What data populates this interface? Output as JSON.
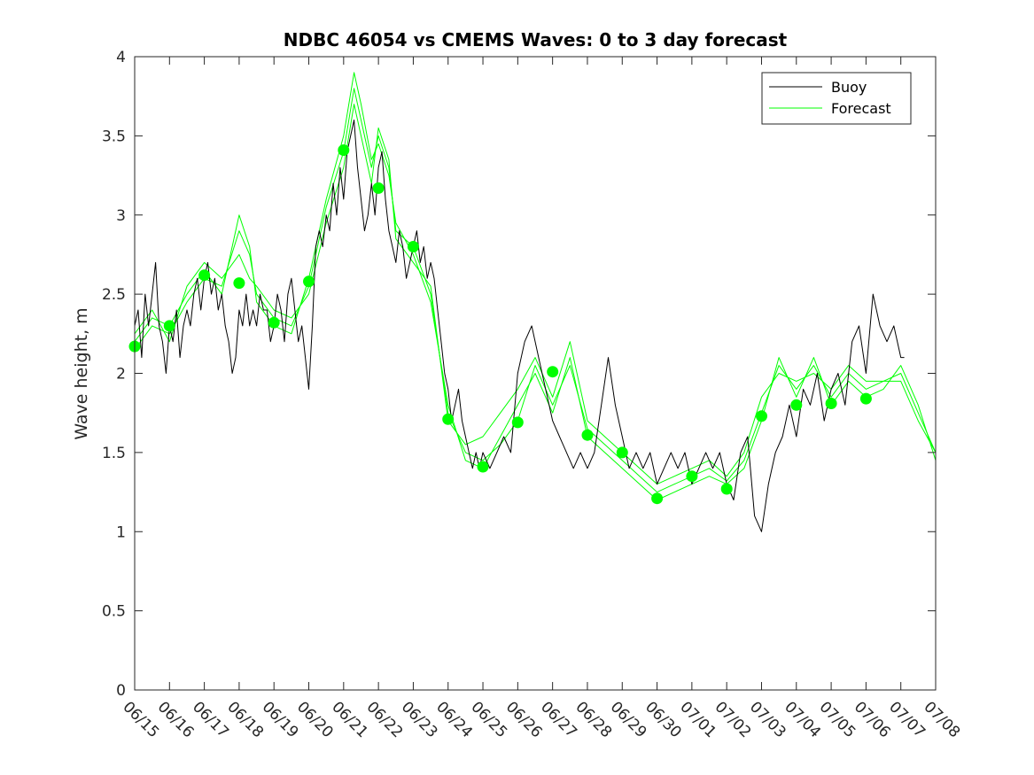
{
  "chart_data": {
    "type": "line",
    "title": "NDBC 46054 vs CMEMS Waves: 0 to 3 day forecast",
    "xlabel": "",
    "ylabel": "Wave height, m",
    "x_ticks": [
      "06/15",
      "06/16",
      "06/17",
      "06/18",
      "06/19",
      "06/20",
      "06/21",
      "06/22",
      "06/23",
      "06/24",
      "06/25",
      "06/26",
      "06/27",
      "06/28",
      "06/29",
      "06/30",
      "07/01",
      "07/02",
      "07/03",
      "07/04",
      "07/05",
      "07/06",
      "07/07",
      "07/08"
    ],
    "y_ticks": [
      "0",
      "0.5",
      "1",
      "1.5",
      "2",
      "2.5",
      "3",
      "3.5",
      "4"
    ],
    "xlim": [
      0,
      23
    ],
    "ylim": [
      0,
      4
    ],
    "grid": false,
    "legend_position": "top-right",
    "x_units": "days since 06/15",
    "series": [
      {
        "name": "Buoy",
        "color": "#000000",
        "x": [
          0,
          0.1,
          0.2,
          0.3,
          0.4,
          0.5,
          0.6,
          0.7,
          0.8,
          0.9,
          1.0,
          1.1,
          1.2,
          1.3,
          1.4,
          1.5,
          1.6,
          1.7,
          1.8,
          1.9,
          2.0,
          2.1,
          2.2,
          2.3,
          2.4,
          2.5,
          2.6,
          2.7,
          2.8,
          2.9,
          3.0,
          3.1,
          3.2,
          3.3,
          3.4,
          3.5,
          3.6,
          3.7,
          3.8,
          3.9,
          4.0,
          4.1,
          4.2,
          4.3,
          4.4,
          4.5,
          4.6,
          4.7,
          4.8,
          4.9,
          5.0,
          5.1,
          5.2,
          5.3,
          5.4,
          5.5,
          5.6,
          5.7,
          5.8,
          5.9,
          6.0,
          6.1,
          6.2,
          6.3,
          6.4,
          6.5,
          6.6,
          6.7,
          6.8,
          6.9,
          7.0,
          7.1,
          7.2,
          7.3,
          7.4,
          7.5,
          7.6,
          7.7,
          7.8,
          7.9,
          8.0,
          8.1,
          8.2,
          8.3,
          8.4,
          8.5,
          8.6,
          8.7,
          8.8,
          8.9,
          9.0,
          9.1,
          9.2,
          9.3,
          9.4,
          9.5,
          9.6,
          9.7,
          9.8,
          9.9,
          10.0,
          10.2,
          10.4,
          10.6,
          10.8,
          11.0,
          11.2,
          11.4,
          11.6,
          11.8,
          12.0,
          12.2,
          12.4,
          12.6,
          12.8,
          13.0,
          13.2,
          13.4,
          13.6,
          13.8,
          14.0,
          14.2,
          14.4,
          14.6,
          14.8,
          15.0,
          15.2,
          15.4,
          15.6,
          15.8,
          16.0,
          16.2,
          16.4,
          16.6,
          16.8,
          17.0,
          17.2,
          17.4,
          17.6,
          17.8,
          18.0,
          18.2,
          18.4,
          18.6,
          18.8,
          19.0,
          19.2,
          19.4,
          19.6,
          19.8,
          20.0,
          20.2,
          20.4,
          20.6,
          20.8,
          21.0,
          21.2,
          21.4,
          21.6,
          21.8,
          22.0,
          22.1
        ],
        "values": [
          2.3,
          2.4,
          2.1,
          2.5,
          2.3,
          2.5,
          2.7,
          2.3,
          2.2,
          2.0,
          2.3,
          2.2,
          2.4,
          2.1,
          2.3,
          2.4,
          2.3,
          2.5,
          2.6,
          2.4,
          2.6,
          2.7,
          2.5,
          2.6,
          2.4,
          2.5,
          2.3,
          2.2,
          2.0,
          2.1,
          2.4,
          2.3,
          2.5,
          2.3,
          2.4,
          2.3,
          2.5,
          2.4,
          2.4,
          2.2,
          2.3,
          2.5,
          2.4,
          2.2,
          2.5,
          2.6,
          2.4,
          2.2,
          2.3,
          2.1,
          1.9,
          2.3,
          2.8,
          2.9,
          2.8,
          3.0,
          2.9,
          3.2,
          3.0,
          3.3,
          3.1,
          3.4,
          3.5,
          3.6,
          3.3,
          3.1,
          2.9,
          3.0,
          3.2,
          3.0,
          3.3,
          3.4,
          3.1,
          2.9,
          2.8,
          2.7,
          2.9,
          2.8,
          2.6,
          2.7,
          2.8,
          2.9,
          2.7,
          2.8,
          2.6,
          2.7,
          2.6,
          2.4,
          2.2,
          2.0,
          1.9,
          1.7,
          1.8,
          1.9,
          1.7,
          1.6,
          1.5,
          1.4,
          1.5,
          1.4,
          1.5,
          1.4,
          1.5,
          1.6,
          1.5,
          2.0,
          2.2,
          2.3,
          2.1,
          1.9,
          1.7,
          1.6,
          1.5,
          1.4,
          1.5,
          1.4,
          1.5,
          1.8,
          2.1,
          1.8,
          1.6,
          1.4,
          1.5,
          1.4,
          1.5,
          1.3,
          1.4,
          1.5,
          1.4,
          1.5,
          1.3,
          1.4,
          1.5,
          1.4,
          1.5,
          1.3,
          1.2,
          1.5,
          1.6,
          1.1,
          1.0,
          1.3,
          1.5,
          1.6,
          1.8,
          1.6,
          1.9,
          1.8,
          2.0,
          1.7,
          1.9,
          2.0,
          1.8,
          2.2,
          2.3,
          2.0,
          2.5,
          2.3,
          2.2,
          2.3,
          2.1,
          2.1
        ]
      },
      {
        "name": "Forecast",
        "color": "#00ff00",
        "x": [
          0,
          0.5,
          1,
          1.5,
          2,
          2.5,
          3,
          3.3,
          3.5,
          4,
          4.5,
          5,
          5.5,
          6,
          6.3,
          6.5,
          6.8,
          7,
          7.3,
          7.5,
          8,
          8.5,
          9,
          9.5,
          10,
          10.5,
          11,
          11.5,
          12,
          12.5,
          13,
          13.5,
          14,
          14.5,
          15,
          15.5,
          16,
          16.5,
          17,
          17.5,
          18,
          18.5,
          19,
          19.5,
          20,
          20.5,
          21,
          21.5,
          22,
          22.5,
          23
        ],
        "values": [
          2.15,
          2.3,
          2.25,
          2.45,
          2.6,
          2.55,
          2.9,
          2.75,
          2.5,
          2.35,
          2.3,
          2.55,
          3.05,
          3.4,
          3.8,
          3.6,
          3.3,
          3.5,
          3.3,
          2.9,
          2.8,
          2.5,
          1.75,
          1.5,
          1.45,
          1.55,
          1.7,
          2.05,
          1.8,
          2.05,
          1.65,
          1.55,
          1.45,
          1.35,
          1.25,
          1.3,
          1.35,
          1.4,
          1.32,
          1.45,
          1.75,
          2.05,
          1.9,
          2.05,
          1.85,
          2.0,
          1.9,
          1.95,
          2.0,
          1.75,
          1.5
        ]
      },
      {
        "name": "",
        "color": "#00ff00",
        "x": [
          0,
          0.5,
          1,
          1.5,
          2,
          2.5,
          3,
          3.3,
          3.5,
          4,
          4.5,
          5,
          5.5,
          6,
          6.3,
          6.5,
          6.8,
          7,
          7.3,
          7.5,
          8,
          8.5,
          9,
          9.5,
          10,
          10.5,
          11,
          11.5,
          12,
          12.5,
          13,
          13.5,
          14,
          14.5,
          15,
          15.5,
          16,
          16.5,
          17,
          17.5,
          18,
          18.5,
          19,
          19.5,
          20,
          20.5,
          21,
          21.5,
          22,
          22.5,
          23
        ],
        "values": [
          2.2,
          2.35,
          2.3,
          2.5,
          2.65,
          2.5,
          3.0,
          2.8,
          2.45,
          2.3,
          2.25,
          2.6,
          3.1,
          3.5,
          3.9,
          3.7,
          3.35,
          3.45,
          3.25,
          2.95,
          2.75,
          2.45,
          1.8,
          1.45,
          1.4,
          1.6,
          1.8,
          2.0,
          1.75,
          2.1,
          1.6,
          1.5,
          1.4,
          1.3,
          1.2,
          1.25,
          1.3,
          1.35,
          1.3,
          1.4,
          1.7,
          2.1,
          1.85,
          2.1,
          1.8,
          1.95,
          1.85,
          1.9,
          2.05,
          1.8,
          1.45
        ]
      },
      {
        "name": "",
        "color": "#00ff00",
        "x": [
          0,
          0.5,
          1,
          1.5,
          2,
          2.5,
          3,
          3.3,
          3.5,
          4,
          4.5,
          5,
          5.5,
          6,
          6.3,
          6.5,
          6.8,
          7,
          7.3,
          7.5,
          8,
          8.5,
          9,
          9.5,
          10,
          10.5,
          11,
          11.5,
          12,
          12.5,
          13,
          13.5,
          14,
          14.5,
          15,
          15.5,
          16,
          16.5,
          17,
          17.5,
          18,
          18.5,
          19,
          19.5,
          20,
          20.5,
          21,
          21.5,
          22,
          22.5,
          23
        ],
        "values": [
          2.25,
          2.4,
          2.2,
          2.55,
          2.7,
          2.6,
          2.75,
          2.6,
          2.55,
          2.4,
          2.35,
          2.5,
          2.95,
          3.3,
          3.7,
          3.5,
          3.2,
          3.55,
          3.35,
          2.85,
          2.7,
          2.55,
          1.7,
          1.55,
          1.6,
          1.75,
          1.9,
          2.1,
          1.85,
          2.2,
          1.7,
          1.6,
          1.5,
          1.4,
          1.3,
          1.35,
          1.4,
          1.45,
          1.35,
          1.5,
          1.85,
          2.0,
          1.95,
          2.0,
          1.9,
          2.05,
          1.95,
          1.95,
          1.95,
          1.7,
          1.5
        ]
      }
    ],
    "markers": {
      "name": "Forecast",
      "color": "#00ff00",
      "x": [
        0,
        1,
        2,
        3,
        4,
        5,
        6,
        7,
        8,
        9,
        10,
        11,
        12,
        13,
        14,
        15,
        16,
        17,
        18,
        19,
        20,
        21
      ],
      "values": [
        2.17,
        2.3,
        2.62,
        2.57,
        2.32,
        2.58,
        3.41,
        3.17,
        2.8,
        1.71,
        1.41,
        1.69,
        2.01,
        1.61,
        1.5,
        1.21,
        1.35,
        1.27,
        1.73,
        1.8,
        1.81,
        1.84
      ]
    }
  }
}
